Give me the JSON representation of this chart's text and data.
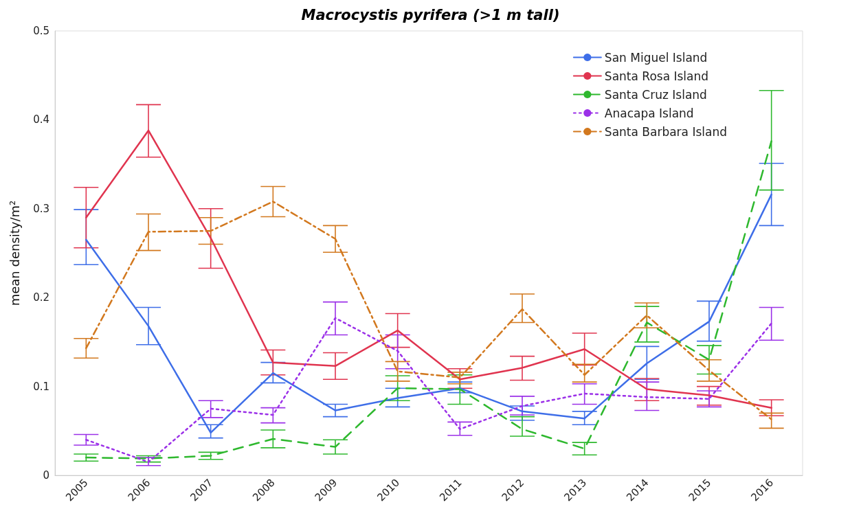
{
  "chart_data": {
    "type": "line",
    "title": "Macrocystis pyrifera (>1 m tall)",
    "ylabel": "mean density/m²",
    "categories": [
      "2005",
      "2006",
      "2007",
      "2008",
      "2009",
      "2010",
      "2011",
      "2012",
      "2013",
      "2014",
      "2015",
      "2016"
    ],
    "ylim": [
      0,
      0.5
    ],
    "yticks": [
      0,
      0.1,
      0.2,
      0.3,
      0.4,
      0.5
    ],
    "grid": false,
    "legend": "top right",
    "marker": "none",
    "series": [
      {
        "name": "San Miguel Island",
        "color": "#3e6ee8",
        "line_style": "solid",
        "values": [
          0.265,
          0.168,
          0.048,
          0.115,
          0.073,
          0.087,
          0.098,
          0.072,
          0.064,
          0.126,
          0.173,
          0.316
        ],
        "errors": [
          [
            0.237,
            0.299
          ],
          [
            0.147,
            0.189
          ],
          [
            0.042,
            0.057
          ],
          [
            0.104,
            0.127
          ],
          [
            0.066,
            0.08
          ],
          [
            0.077,
            0.098
          ],
          [
            0.093,
            0.105
          ],
          [
            0.062,
            0.078
          ],
          [
            0.057,
            0.072
          ],
          [
            0.108,
            0.145
          ],
          [
            0.151,
            0.196
          ],
          [
            0.281,
            0.351
          ]
        ]
      },
      {
        "name": "Santa Rosa Island",
        "color": "#e0344f",
        "line_style": "solid",
        "values": [
          0.29,
          0.388,
          0.267,
          0.127,
          0.123,
          0.163,
          0.108,
          0.121,
          0.142,
          0.097,
          0.09,
          0.076
        ],
        "errors": [
          [
            0.256,
            0.324
          ],
          [
            0.358,
            0.417
          ],
          [
            0.233,
            0.3
          ],
          [
            0.113,
            0.141
          ],
          [
            0.108,
            0.138
          ],
          [
            0.144,
            0.182
          ],
          [
            0.098,
            0.12
          ],
          [
            0.107,
            0.134
          ],
          [
            0.124,
            0.16
          ],
          [
            0.084,
            0.109
          ],
          [
            0.079,
            0.1
          ],
          [
            0.067,
            0.085
          ]
        ]
      },
      {
        "name": "Santa Cruz Island",
        "color": "#2eb82e",
        "line_style": "dashed",
        "values": [
          0.02,
          0.019,
          0.022,
          0.041,
          0.032,
          0.098,
          0.097,
          0.052,
          0.03,
          0.172,
          0.13,
          0.376
        ],
        "errors": [
          [
            0.016,
            0.024
          ],
          [
            0.015,
            0.022
          ],
          [
            0.018,
            0.026
          ],
          [
            0.031,
            0.051
          ],
          [
            0.024,
            0.04
          ],
          [
            0.084,
            0.112
          ],
          [
            0.08,
            0.113
          ],
          [
            0.044,
            0.066
          ],
          [
            0.023,
            0.037
          ],
          [
            0.15,
            0.19
          ],
          [
            0.114,
            0.146
          ],
          [
            0.321,
            0.433
          ]
        ]
      },
      {
        "name": "Anacapa Island",
        "color": "#9b30e8",
        "line_style": "dotted",
        "values": [
          0.04,
          0.015,
          0.075,
          0.068,
          0.177,
          0.14,
          0.052,
          0.078,
          0.092,
          0.088,
          0.086,
          0.171
        ],
        "errors": [
          [
            0.034,
            0.046
          ],
          [
            0.011,
            0.02
          ],
          [
            0.065,
            0.084
          ],
          [
            0.059,
            0.076
          ],
          [
            0.158,
            0.195
          ],
          [
            0.12,
            0.158
          ],
          [
            0.045,
            0.06
          ],
          [
            0.068,
            0.089
          ],
          [
            0.08,
            0.103
          ],
          [
            0.073,
            0.105
          ],
          [
            0.077,
            0.095
          ],
          [
            0.152,
            0.189
          ]
        ]
      },
      {
        "name": "Santa Barbara Island",
        "color": "#d2781e",
        "line_style": "dashdot",
        "values": [
          0.143,
          0.274,
          0.275,
          0.308,
          0.266,
          0.117,
          0.11,
          0.187,
          0.113,
          0.18,
          0.118,
          0.063
        ],
        "errors": [
          [
            0.132,
            0.154
          ],
          [
            0.253,
            0.294
          ],
          [
            0.26,
            0.29
          ],
          [
            0.291,
            0.325
          ],
          [
            0.251,
            0.281
          ],
          [
            0.106,
            0.128
          ],
          [
            0.103,
            0.116
          ],
          [
            0.172,
            0.204
          ],
          [
            0.105,
            0.125
          ],
          [
            0.166,
            0.194
          ],
          [
            0.106,
            0.13
          ],
          [
            0.053,
            0.07
          ]
        ]
      }
    ]
  }
}
